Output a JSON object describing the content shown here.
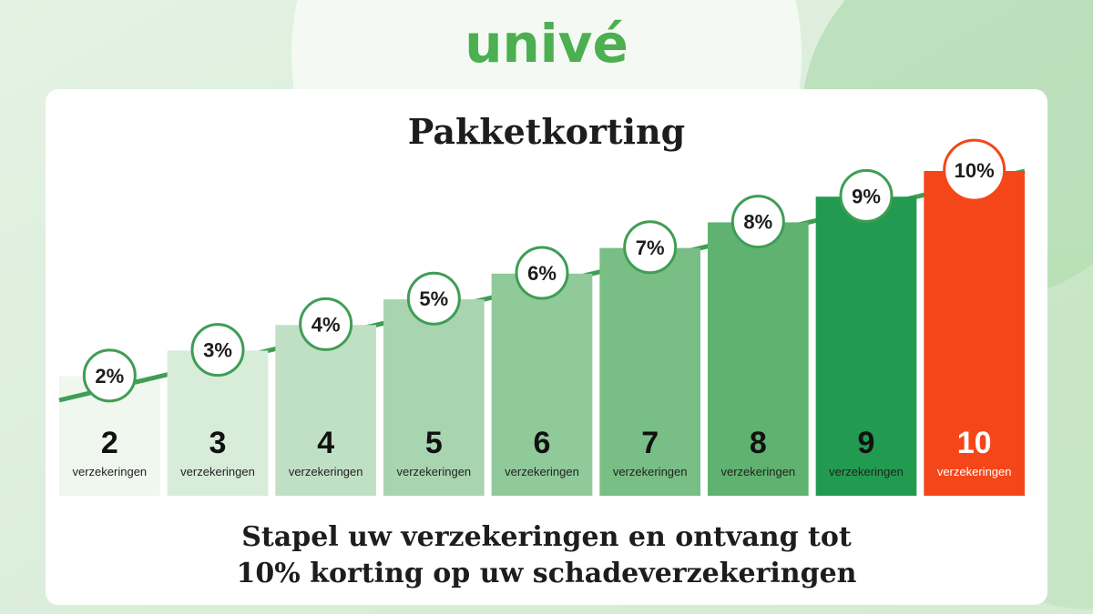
{
  "logo": "univé",
  "title": "Pakketkorting",
  "steps": [
    {
      "discount": "2%",
      "count": "2",
      "label": "verzekeringen"
    },
    {
      "discount": "3%",
      "count": "3",
      "label": "verzekeringen"
    },
    {
      "discount": "4%",
      "count": "4",
      "label": "verzekeringen"
    },
    {
      "discount": "5%",
      "count": "5",
      "label": "verzekeringen"
    },
    {
      "discount": "6%",
      "count": "6",
      "label": "verzekeringen"
    },
    {
      "discount": "7%",
      "count": "7",
      "label": "verzekeringen"
    },
    {
      "discount": "8%",
      "count": "8",
      "label": "verzekeringen"
    },
    {
      "discount": "9%",
      "count": "9",
      "label": "verzekeringen"
    },
    {
      "discount": "10%",
      "count": "10",
      "label": "verzekeringen"
    }
  ],
  "footer": [
    "Stapel uw verzekeringen en ontvang tot",
    "10% korting op uw schadeverzekeringen"
  ]
}
